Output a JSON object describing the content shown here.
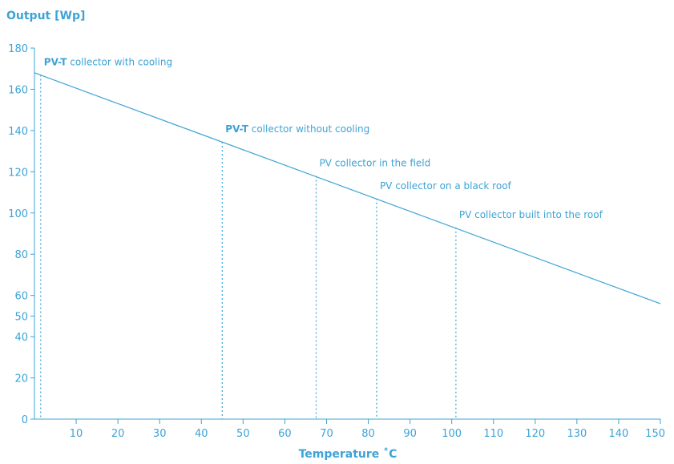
{
  "chart_data": {
    "type": "line",
    "title": "",
    "ylabel": "Output [Wp]",
    "xlabel": "Temperature ˚C",
    "xlim": [
      0,
      150
    ],
    "ylim": [
      0,
      180
    ],
    "x_ticks": [
      10,
      20,
      30,
      40,
      50,
      60,
      70,
      80,
      90,
      100,
      110,
      120,
      130,
      140,
      150
    ],
    "y_ticks": [
      0,
      20,
      40,
      50,
      60,
      80,
      100,
      120,
      140,
      160,
      180
    ],
    "grid": false,
    "series": [
      {
        "x": [
          0,
          150
        ],
        "y": [
          168,
          56
        ]
      }
    ],
    "annotations": [
      {
        "bold": "PV-T",
        "text": " collector with cooling",
        "x": 1.5,
        "y": 167
      },
      {
        "bold": "PV-T",
        "text": " collector without cooling",
        "x": 45,
        "y": 134.5
      },
      {
        "bold": "",
        "text": "PV collector in the field",
        "x": 67.5,
        "y": 118
      },
      {
        "bold": "",
        "text": "PV collector on a black roof",
        "x": 82,
        "y": 107
      },
      {
        "bold": "",
        "text": "PV collector built into the roof",
        "x": 101,
        "y": 93
      }
    ],
    "colors": {
      "line": "#3da3d6",
      "text": "#3da3d6"
    }
  }
}
